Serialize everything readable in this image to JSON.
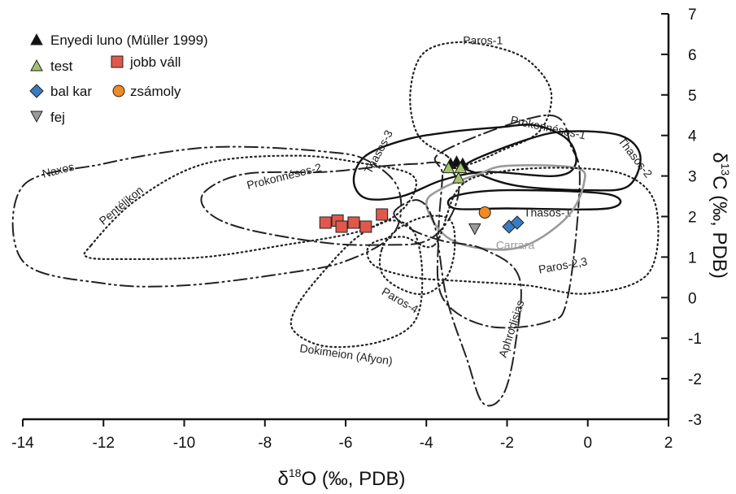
{
  "chart_data": {
    "type": "scatter",
    "title": "",
    "xlabel": {
      "prefix": "δ",
      "sup": "18",
      "suffix": "O (‰, PDB)"
    },
    "ylabel": {
      "prefix": "δ",
      "sup": "13",
      "suffix": "C (‰, PDB)"
    },
    "xlim": [
      -14,
      2
    ],
    "ylim": [
      -3,
      7
    ],
    "x_ticks": [
      -14,
      -12,
      -10,
      -8,
      -6,
      -4,
      -2,
      0,
      2
    ],
    "y_ticks": [
      7,
      6,
      5,
      4,
      3,
      2,
      1,
      0,
      -1,
      -2,
      -3
    ],
    "y_axis_side": "right",
    "grid": false,
    "legend_position": "top-left",
    "series": [
      {
        "name": "Enyedi luno (Müller 1999)",
        "marker": "triangle-up",
        "color": "#111111",
        "points": [
          [
            -3.4,
            3.3
          ],
          [
            -3.25,
            3.35
          ],
          [
            -3.1,
            3.3
          ]
        ]
      },
      {
        "name": "test",
        "marker": "triangle-up",
        "color": "#a3c46a",
        "points": [
          [
            -3.45,
            3.2
          ],
          [
            -3.15,
            3.2
          ],
          [
            -3.2,
            2.95
          ]
        ]
      },
      {
        "name": "jobb váll",
        "marker": "square",
        "color": "#e0584a",
        "points": [
          [
            -6.5,
            1.85
          ],
          [
            -6.2,
            1.9
          ],
          [
            -6.1,
            1.75
          ],
          [
            -5.8,
            1.85
          ],
          [
            -5.5,
            1.75
          ],
          [
            -5.1,
            2.05
          ]
        ]
      },
      {
        "name": "bal kar",
        "marker": "diamond",
        "color": "#3a7cc2",
        "points": [
          [
            -1.95,
            1.75
          ],
          [
            -1.75,
            1.85
          ]
        ]
      },
      {
        "name": "zsámoly",
        "marker": "circle",
        "color": "#f08a24",
        "points": [
          [
            -2.55,
            2.1
          ]
        ]
      },
      {
        "name": "fej",
        "marker": "triangle-down",
        "color": "#9a9a9a",
        "points": [
          [
            -2.8,
            1.7
          ]
        ]
      }
    ],
    "fields": [
      {
        "name": "Paros-1",
        "style": "dotted",
        "points": [
          [
            -3.5,
            3.5
          ],
          [
            -4.2,
            4.0
          ],
          [
            -4.4,
            5.0
          ],
          [
            -4.1,
            6.0
          ],
          [
            -3.2,
            6.3
          ],
          [
            -2.0,
            6.1
          ],
          [
            -1.3,
            5.7
          ],
          [
            -0.9,
            5.0
          ],
          [
            -1.2,
            4.1
          ],
          [
            -2.2,
            3.6
          ],
          [
            -2.9,
            3.3
          ],
          [
            -3.3,
            3.3
          ]
        ],
        "label_at": [
          -2.6,
          6.25
        ]
      },
      {
        "name": "Prokonnésos-1",
        "style": "dashdot",
        "points": [
          [
            -3.6,
            3.6
          ],
          [
            -1.0,
            4.5
          ],
          [
            -0.4,
            3.7
          ],
          [
            -0.2,
            2.8
          ],
          [
            -0.5,
            0.0
          ],
          [
            -1.0,
            -0.6
          ],
          [
            -2.5,
            -0.7
          ],
          [
            -3.6,
            0.0
          ],
          [
            -3.7,
            1.5
          ],
          [
            -3.6,
            3.0
          ]
        ],
        "label_at": [
          -1.0,
          4.1
        ]
      },
      {
        "name": "Thasos-3",
        "style": "solid",
        "points": [
          [
            -5.5,
            3.5
          ],
          [
            -4.5,
            3.9
          ],
          [
            -3.3,
            4.1
          ],
          [
            -2.2,
            4.2
          ],
          [
            -1.3,
            4.25
          ],
          [
            -0.5,
            3.9
          ],
          [
            -0.3,
            3.3
          ],
          [
            -0.8,
            3.0
          ],
          [
            -2.5,
            3.1
          ],
          [
            -3.6,
            2.9
          ],
          [
            -4.6,
            2.5
          ],
          [
            -5.5,
            2.45
          ],
          [
            -5.8,
            2.9
          ]
        ],
        "label_at": [
          -5.1,
          3.55
        ]
      },
      {
        "name": "Thasos-2",
        "style": "solid",
        "points": [
          [
            -3.0,
            3.3
          ],
          [
            -1.5,
            3.9
          ],
          [
            -0.5,
            4.1
          ],
          [
            0.8,
            4.0
          ],
          [
            1.3,
            3.5
          ],
          [
            1.0,
            2.75
          ],
          [
            0.0,
            2.65
          ],
          [
            -1.7,
            2.75
          ],
          [
            -2.7,
            3.05
          ]
        ],
        "label_at": [
          1.1,
          3.4
        ]
      },
      {
        "name": "Thasos-1",
        "style": "solid",
        "points": [
          [
            -3.3,
            2.5
          ],
          [
            -2.0,
            2.65
          ],
          [
            0.5,
            2.55
          ],
          [
            0.5,
            2.2
          ],
          [
            -2.0,
            2.2
          ],
          [
            -3.3,
            2.2
          ]
        ],
        "label_at": [
          -1.0,
          2.0
        ]
      },
      {
        "name": "Carrara",
        "style": "gray",
        "points": [
          [
            -2.0,
            3.25
          ],
          [
            -0.3,
            3.2
          ],
          [
            -0.1,
            2.8
          ],
          [
            -0.5,
            2.0
          ],
          [
            -1.5,
            1.3
          ],
          [
            -2.5,
            1.2
          ],
          [
            -3.5,
            1.5
          ],
          [
            -4.0,
            2.3
          ],
          [
            -3.6,
            2.7
          ],
          [
            -2.7,
            3.05
          ]
        ],
        "label_at": [
          -1.8,
          1.2
        ]
      },
      {
        "name": "Paros-2,3",
        "style": "dotted",
        "points": [
          [
            -3.8,
            1.3
          ],
          [
            -3.2,
            2.7
          ],
          [
            -2.2,
            3.1
          ],
          [
            -0.5,
            3.2
          ],
          [
            1.0,
            3.0
          ],
          [
            1.7,
            2.2
          ],
          [
            1.5,
            0.6
          ],
          [
            0.0,
            0.1
          ],
          [
            -1.5,
            0.3
          ],
          [
            -3.0,
            0.4
          ],
          [
            -4.3,
            0.5
          ],
          [
            -5.3,
            0.8
          ],
          [
            -5.4,
            1.3
          ],
          [
            -4.6,
            1.5
          ]
        ],
        "label_at": [
          -0.6,
          0.7
        ]
      },
      {
        "name": "Paros-4",
        "style": "dotted",
        "points": [
          [
            -5.1,
            1.2
          ],
          [
            -4.7,
            1.7
          ],
          [
            -4.0,
            2.0
          ],
          [
            -3.4,
            1.9
          ],
          [
            -3.3,
            1.2
          ],
          [
            -3.5,
            0.5
          ],
          [
            -4.0,
            0.1
          ],
          [
            -4.6,
            0.2
          ],
          [
            -5.1,
            0.6
          ]
        ],
        "label_at": [
          -4.7,
          -0.15
        ]
      },
      {
        "name": "Dokimeion (Afyon)",
        "style": "dotted",
        "points": [
          [
            -5.7,
            1.5
          ],
          [
            -4.9,
            1.9
          ],
          [
            -4.3,
            1.6
          ],
          [
            -4.1,
            0.5
          ],
          [
            -4.3,
            -0.6
          ],
          [
            -5.2,
            -1.1
          ],
          [
            -6.5,
            -1.2
          ],
          [
            -7.3,
            -0.8
          ],
          [
            -7.2,
            -0.2
          ],
          [
            -6.5,
            0.7
          ]
        ],
        "label_at": [
          -6.0,
          -1.5
        ]
      },
      {
        "name": "Aphrodisias",
        "style": "dashdot",
        "points": [
          [
            -4.8,
            2.1
          ],
          [
            -4.2,
            2.4
          ],
          [
            -3.8,
            1.8
          ],
          [
            -3.5,
            0.0
          ],
          [
            -3.0,
            -1.5
          ],
          [
            -2.6,
            -2.6
          ],
          [
            -2.1,
            -2.4
          ],
          [
            -1.8,
            -1.2
          ],
          [
            -1.7,
            0.5
          ],
          [
            -2.6,
            1.2
          ],
          [
            -3.6,
            1.4
          ],
          [
            -4.4,
            1.7
          ]
        ],
        "label_at": [
          -1.8,
          -0.8
        ]
      },
      {
        "name": "Prokonnésos-2",
        "style": "dashdot",
        "points": [
          [
            -9.5,
            2.6
          ],
          [
            -8.5,
            3.05
          ],
          [
            -6.5,
            3.1
          ],
          [
            -5.0,
            3.25
          ],
          [
            -4.2,
            3.3
          ],
          [
            -3.6,
            3.3
          ],
          [
            -3.2,
            2.8
          ],
          [
            -3.4,
            2.0
          ],
          [
            -4.0,
            1.4
          ],
          [
            -5.0,
            1.3
          ],
          [
            -6.5,
            1.35
          ],
          [
            -8.5,
            1.7
          ],
          [
            -9.4,
            2.1
          ]
        ],
        "label_at": [
          -7.5,
          2.9
        ]
      },
      {
        "name": "Pentélikon",
        "style": "dotted",
        "points": [
          [
            -12.3,
            1.3
          ],
          [
            -11.2,
            2.4
          ],
          [
            -9.5,
            3.3
          ],
          [
            -7.2,
            3.5
          ],
          [
            -5.5,
            3.3
          ],
          [
            -4.4,
            3.05
          ],
          [
            -4.3,
            2.6
          ],
          [
            -4.8,
            2.0
          ],
          [
            -5.8,
            1.6
          ],
          [
            -7.5,
            1.3
          ],
          [
            -9.5,
            1.0
          ],
          [
            -11.5,
            0.95
          ],
          [
            -12.4,
            1.0
          ]
        ],
        "label_at": [
          -11.5,
          2.2
        ]
      },
      {
        "name": "Naxos",
        "style": "dashdotdot",
        "points": [
          [
            -14.0,
            2.75
          ],
          [
            -12.0,
            3.3
          ],
          [
            -10.0,
            3.65
          ],
          [
            -8.5,
            3.72
          ],
          [
            -6.5,
            3.6
          ],
          [
            -5.5,
            3.4
          ],
          [
            -4.7,
            2.7
          ],
          [
            -4.8,
            1.6
          ],
          [
            -6.0,
            0.9
          ],
          [
            -7.5,
            0.6
          ],
          [
            -10.0,
            0.3
          ],
          [
            -12.0,
            0.35
          ],
          [
            -14.0,
            0.9
          ]
        ],
        "label_at": [
          -13.1,
          3.05
        ]
      }
    ]
  }
}
